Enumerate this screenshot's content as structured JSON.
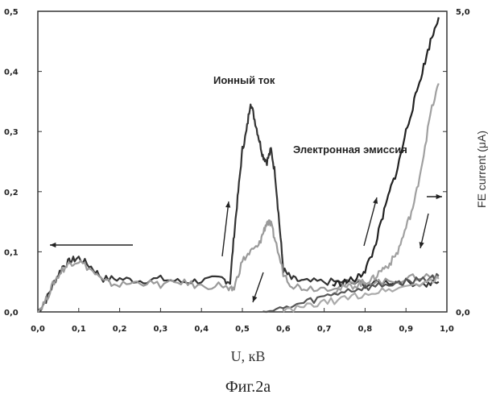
{
  "chart_data": {
    "type": "line",
    "xlabel": "U, кВ",
    "caption": "Фиг.2a",
    "right_ylabel": "FE current (μA)",
    "xlim": [
      0.0,
      1.0
    ],
    "ylim_left": [
      0.0,
      0.5
    ],
    "ylim_right": [
      0.0,
      5.0
    ],
    "x_ticks": [
      "0,0",
      "0,1",
      "0,2",
      "0,3",
      "0,4",
      "0,5",
      "0,6",
      "0,7",
      "0,8",
      "0,9",
      "1,0"
    ],
    "y_ticks_left": [
      "0,0",
      "0,1",
      "0,2",
      "0,3",
      "0,4",
      "0,5"
    ],
    "y_ticks_right": [
      "0,0",
      "5,0"
    ],
    "annotations": [
      "Ионный ток",
      "Электронная эмиссия"
    ],
    "grid": false,
    "series": [
      {
        "color": "#333333",
        "x": [
          0.0,
          0.02,
          0.04,
          0.06,
          0.08,
          0.1,
          0.13,
          0.16,
          0.2,
          0.25,
          0.3,
          0.35,
          0.4,
          0.45,
          0.47,
          0.48,
          0.49,
          0.5,
          0.51,
          0.52,
          0.53,
          0.54,
          0.55,
          0.56,
          0.57,
          0.58,
          0.59,
          0.6,
          0.62,
          0.65,
          0.7,
          0.75,
          0.8,
          0.85,
          0.9,
          0.95,
          0.98
        ],
        "y": [
          0.0,
          0.02,
          0.05,
          0.075,
          0.085,
          0.09,
          0.075,
          0.055,
          0.055,
          0.052,
          0.055,
          0.05,
          0.052,
          0.055,
          0.05,
          0.13,
          0.2,
          0.27,
          0.3,
          0.35,
          0.32,
          0.29,
          0.26,
          0.25,
          0.27,
          0.23,
          0.15,
          0.07,
          0.055,
          0.05,
          0.05,
          0.05,
          0.045,
          0.05,
          0.05,
          0.045,
          0.05
        ]
      },
      {
        "color": "#9a9a9a",
        "x": [
          0.0,
          0.02,
          0.04,
          0.06,
          0.08,
          0.1,
          0.13,
          0.16,
          0.2,
          0.25,
          0.3,
          0.35,
          0.4,
          0.45,
          0.47,
          0.48,
          0.5,
          0.52,
          0.54,
          0.55,
          0.56,
          0.57,
          0.58,
          0.6,
          0.62,
          0.65,
          0.7,
          0.75,
          0.8,
          0.85,
          0.9,
          0.95,
          0.98
        ],
        "y": [
          0.0,
          0.02,
          0.05,
          0.07,
          0.082,
          0.085,
          0.07,
          0.05,
          0.045,
          0.05,
          0.045,
          0.05,
          0.042,
          0.045,
          0.035,
          0.04,
          0.085,
          0.1,
          0.11,
          0.13,
          0.15,
          0.145,
          0.12,
          0.065,
          0.045,
          0.04,
          0.04,
          0.045,
          0.05,
          0.05,
          0.055,
          0.06,
          0.058
        ]
      },
      {
        "color": "#222222",
        "x": [
          0.72,
          0.75,
          0.78,
          0.8,
          0.82,
          0.84,
          0.86,
          0.88,
          0.9,
          0.92,
          0.94,
          0.96,
          0.98
        ],
        "y": [
          0.045,
          0.05,
          0.055,
          0.07,
          0.1,
          0.15,
          0.2,
          0.24,
          0.3,
          0.35,
          0.4,
          0.45,
          0.49
        ]
      },
      {
        "color": "#a0a0a0",
        "x": [
          0.72,
          0.75,
          0.78,
          0.8,
          0.82,
          0.84,
          0.86,
          0.88,
          0.9,
          0.92,
          0.94,
          0.96,
          0.98
        ],
        "y": [
          0.035,
          0.04,
          0.045,
          0.05,
          0.055,
          0.07,
          0.08,
          0.1,
          0.14,
          0.18,
          0.25,
          0.33,
          0.38
        ]
      },
      {
        "color": "#555555",
        "x": [
          0.55,
          0.6,
          0.65,
          0.7,
          0.75,
          0.8,
          0.85,
          0.9,
          0.95,
          0.98
        ],
        "y": [
          0.0,
          0.005,
          0.015,
          0.025,
          0.035,
          0.04,
          0.045,
          0.05,
          0.055,
          0.06
        ]
      },
      {
        "color": "#aaaaaa",
        "x": [
          0.6,
          0.65,
          0.7,
          0.75,
          0.8,
          0.85,
          0.9,
          0.95,
          0.98
        ],
        "y": [
          0.0,
          0.008,
          0.015,
          0.022,
          0.03,
          0.036,
          0.042,
          0.05,
          0.055
        ]
      }
    ]
  }
}
